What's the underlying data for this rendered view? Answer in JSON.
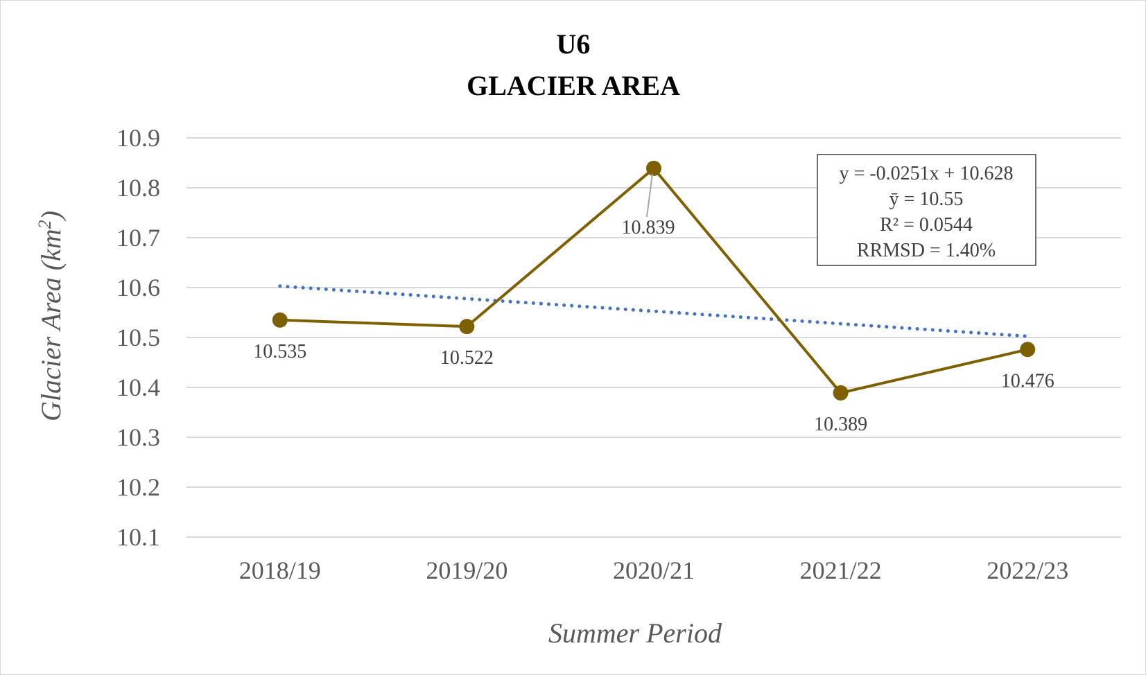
{
  "chart_data": {
    "type": "line",
    "title_lines": [
      "U6",
      "GLACIER AREA"
    ],
    "xlabel": "Summer Period",
    "ylabel_main": "Glacier Area (km",
    "ylabel_sup": "2",
    "ylabel_end": ")",
    "categories": [
      "2018/19",
      "2019/20",
      "2020/21",
      "2021/22",
      "2022/23"
    ],
    "values": [
      10.535,
      10.522,
      10.839,
      10.389,
      10.476
    ],
    "data_labels": [
      "10.535",
      "10.522",
      "10.839",
      "10.389",
      "10.476"
    ],
    "ylim": [
      10.1,
      10.9
    ],
    "yticks": [
      10.1,
      10.2,
      10.3,
      10.4,
      10.5,
      10.6,
      10.7,
      10.8,
      10.9
    ],
    "ytick_labels": [
      "10.1",
      "10.2",
      "10.3",
      "10.4",
      "10.5",
      "10.6",
      "10.7",
      "10.8",
      "10.9"
    ],
    "grid": true,
    "series_color": "#7f6000",
    "trendline": {
      "style": "dotted",
      "color": "#4472c4",
      "slope": -0.0251,
      "intercept": 10.628
    },
    "stats_box": [
      "y = -0.0251x + 10.628",
      "ȳ = 10.55",
      "R² = 0.0544",
      "RRMSD = 1.40%"
    ]
  }
}
